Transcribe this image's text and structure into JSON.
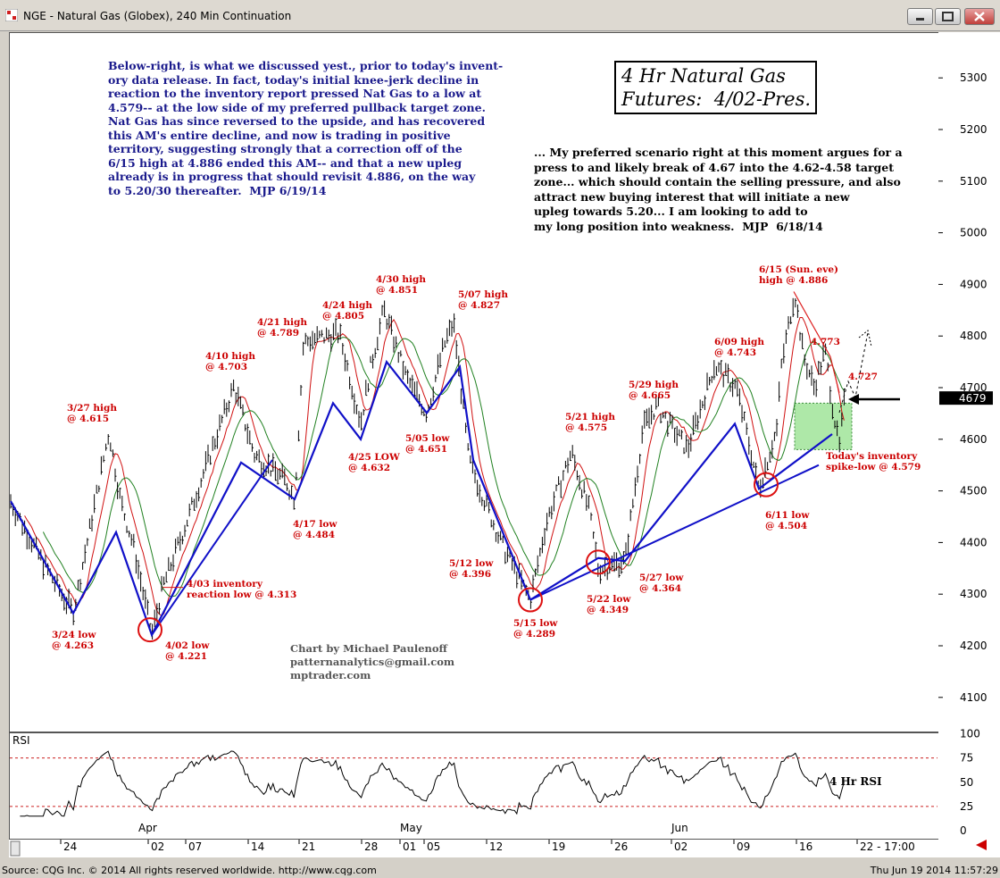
{
  "window": {
    "title": "NGE - Natural Gas (Globex), 240 Min Continuation"
  },
  "footer": {
    "source": "Source: CQG Inc. © 2014 All rights reserved worldwide. http://www.cqg.com",
    "timestamp": "Thu Jun 19 2014 11:57:29"
  },
  "annotations": {
    "headline_line1": "4 Hr Natural Gas",
    "headline_line2": "Futures:  4/02-Pres.",
    "commentary_0619": "Below-right, is what we discussed yest., prior to today's invent-\nory data release. In fact, today's initial knee-jerk decline in\nreaction to the inventory report pressed Nat Gas to a low at\n4.579-- at the low side of my preferred pullback target zone.\nNat Gas has since reversed to the upside, and has recovered\nthis AM's entire decline, and now is trading in positive\nterritory, suggesting strongly that a correction off of the\n6/15 high at 4.886 ended this AM-- and that a new upleg\nalready is in progress that should revisit 4.886, on the way\nto 5.20/30 thereafter.  MJP 6/19/14",
    "commentary_0618": "... My preferred scenario right at this moment argues for a\npress to and likely break of 4.67 into the 4.62-4.58 target\nzone... which should contain the selling pressure, and also\nattract new buying interest that will initiate a new\nupleg towards 5.20... I am looking to add to\nmy long position into weakness.  MJP  6/18/14",
    "credit": "Chart by Michael Paulenoff\npatternanalytics@gmail.com\nmptrader.com"
  },
  "chart_data": {
    "type": "line",
    "instrument": "NGE - Natural Gas (Globex)",
    "interval": "240 Min Continuation",
    "price_axis": {
      "ticks": [
        4100,
        4200,
        4300,
        4400,
        4500,
        4600,
        4700,
        4800,
        4900,
        5000,
        5100,
        5200,
        5300
      ],
      "ylim": [
        4050,
        5370
      ],
      "last_price_label": "4679",
      "last_price": 4679
    },
    "x_axis": {
      "tick_labels": [
        "24",
        "Apr",
        "02",
        "07",
        "14",
        "21",
        "28",
        "May",
        "01",
        "05",
        "12",
        "19",
        "26",
        "Jun",
        "02",
        "09",
        "16",
        "22 - 17:00"
      ]
    },
    "swing_points": [
      {
        "date": "3/24",
        "type": "low",
        "price": 4.263,
        "label": "3/24 low\n@ 4.263"
      },
      {
        "date": "3/27",
        "type": "high",
        "price": 4.615,
        "label": "3/27 high\n@ 4.615"
      },
      {
        "date": "4/02",
        "type": "low",
        "price": 4.221,
        "label": "4/02 low\n@ 4.221"
      },
      {
        "date": "4/03",
        "type": "low",
        "price": 4.313,
        "label": "4/03 inventory\nreaction low @ 4.313"
      },
      {
        "date": "4/10",
        "type": "high",
        "price": 4.703,
        "label": "4/10 high\n@ 4.703"
      },
      {
        "date": "4/17",
        "type": "low",
        "price": 4.484,
        "label": "4/17 low\n@ 4.484"
      },
      {
        "date": "4/21",
        "type": "high",
        "price": 4.789,
        "label": "4/21 high\n@ 4.789"
      },
      {
        "date": "4/24",
        "type": "high",
        "price": 4.805,
        "label": "4/24 high\n@ 4.805"
      },
      {
        "date": "4/25",
        "type": "low",
        "price": 4.632,
        "label": "4/25 LOW\n@ 4.632"
      },
      {
        "date": "4/30",
        "type": "high",
        "price": 4.851,
        "label": "4/30 high\n@ 4.851"
      },
      {
        "date": "5/05",
        "type": "low",
        "price": 4.651,
        "label": "5/05 low\n@ 4.651"
      },
      {
        "date": "5/07",
        "type": "high",
        "price": 4.827,
        "label": "5/07 high\n@ 4.827"
      },
      {
        "date": "5/12",
        "type": "low",
        "price": 4.396,
        "label": "5/12 low\n@ 4.396"
      },
      {
        "date": "5/15",
        "type": "low",
        "price": 4.289,
        "label": "5/15 low\n@ 4.289"
      },
      {
        "date": "5/21",
        "type": "high",
        "price": 4.575,
        "label": "5/21 high\n@ 4.575"
      },
      {
        "date": "5/22",
        "type": "low",
        "price": 4.349,
        "label": "5/22 low\n@ 4.349"
      },
      {
        "date": "5/27",
        "type": "low",
        "price": 4.364,
        "label": "5/27 low\n@ 4.364"
      },
      {
        "date": "5/29",
        "type": "high",
        "price": 4.665,
        "label": "5/29 high\n@ 4.665"
      },
      {
        "date": "6/09",
        "type": "high",
        "price": 4.743,
        "label": "6/09 high\n@ 4.743"
      },
      {
        "date": "6/11",
        "type": "low",
        "price": 4.504,
        "label": "6/11 low\n@ 4.504"
      },
      {
        "date": "6/15",
        "type": "high",
        "price": 4.886,
        "label": "6/15 (Sun. eve)\nhigh @ 4.886"
      },
      {
        "date": "6/19",
        "type": "low",
        "price": 4.579,
        "label": "Today's inventory\nspike-low @ 4.579"
      }
    ],
    "extra_labels": [
      "4.773",
      "4.727"
    ],
    "target_zone": {
      "low": 4.58,
      "high": 4.67
    },
    "rsi": {
      "label": "RSI",
      "series_label": "4 Hr RSI",
      "ticks": [
        0,
        25,
        50,
        75,
        100
      ],
      "reference_lines": [
        25,
        75
      ]
    },
    "colors": {
      "price_bars": "#000000",
      "wave_lines": "#1010c8",
      "annotations": "#cc0000",
      "moving_average_fast": "#d01010",
      "moving_average_slow": "#208020",
      "target_zone": "#aee8a8"
    }
  }
}
